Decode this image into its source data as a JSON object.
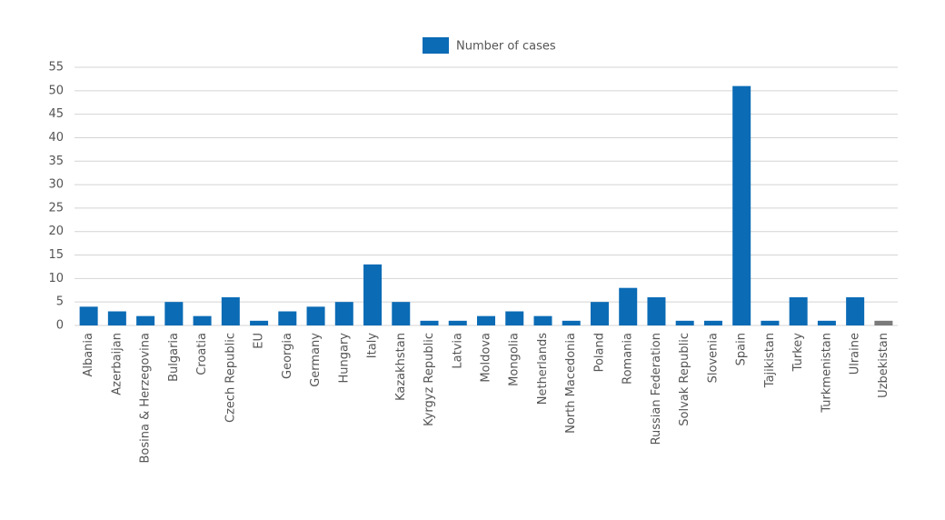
{
  "chart_data": {
    "type": "bar",
    "categories": [
      "Albania",
      "Azerbaijan",
      "Bosina & Herzegovina",
      "Bulgaria",
      "Croatia",
      "Czech Republic",
      "EU",
      "Georgia",
      "Germany",
      "Hungary",
      "Italy",
      "Kazakhstan",
      "Kyrgyz Republic",
      "Latvia",
      "Moldova",
      "Mongolia",
      "Netherlands",
      "North Macedonia",
      "Poland",
      "Romania",
      "Russian Federation",
      "Solvak Republic",
      "Slovenia",
      "Spain",
      "Tajikistan",
      "Turkey",
      "Turkmenistan",
      "Ulraine",
      "Uzbekistan"
    ],
    "series": [
      {
        "name": "Number of cases",
        "color": "#0b6bb5",
        "values": [
          4,
          3,
          2,
          5,
          2,
          6,
          1,
          3,
          4,
          5,
          13,
          5,
          1,
          1,
          2,
          3,
          2,
          1,
          5,
          8,
          6,
          1,
          1,
          51,
          1,
          6,
          1,
          6,
          1
        ],
        "colors": [
          "#0b6bb5",
          "#0b6bb5",
          "#0b6bb5",
          "#0b6bb5",
          "#0b6bb5",
          "#0b6bb5",
          "#0b6bb5",
          "#0b6bb5",
          "#0b6bb5",
          "#0b6bb5",
          "#0b6bb5",
          "#0b6bb5",
          "#0b6bb5",
          "#0b6bb5",
          "#0b6bb5",
          "#0b6bb5",
          "#0b6bb5",
          "#0b6bb5",
          "#0b6bb5",
          "#0b6bb5",
          "#0b6bb5",
          "#0b6bb5",
          "#0b6bb5",
          "#0b6bb5",
          "#0b6bb5",
          "#0b6bb5",
          "#0b6bb5",
          "#0b6bb5",
          "#7a7a7a"
        ]
      }
    ],
    "ylim": [
      0,
      55
    ],
    "yticks": [
      0,
      5,
      10,
      15,
      20,
      25,
      30,
      35,
      40,
      45,
      50,
      55
    ],
    "grid": true,
    "legend": "top"
  }
}
